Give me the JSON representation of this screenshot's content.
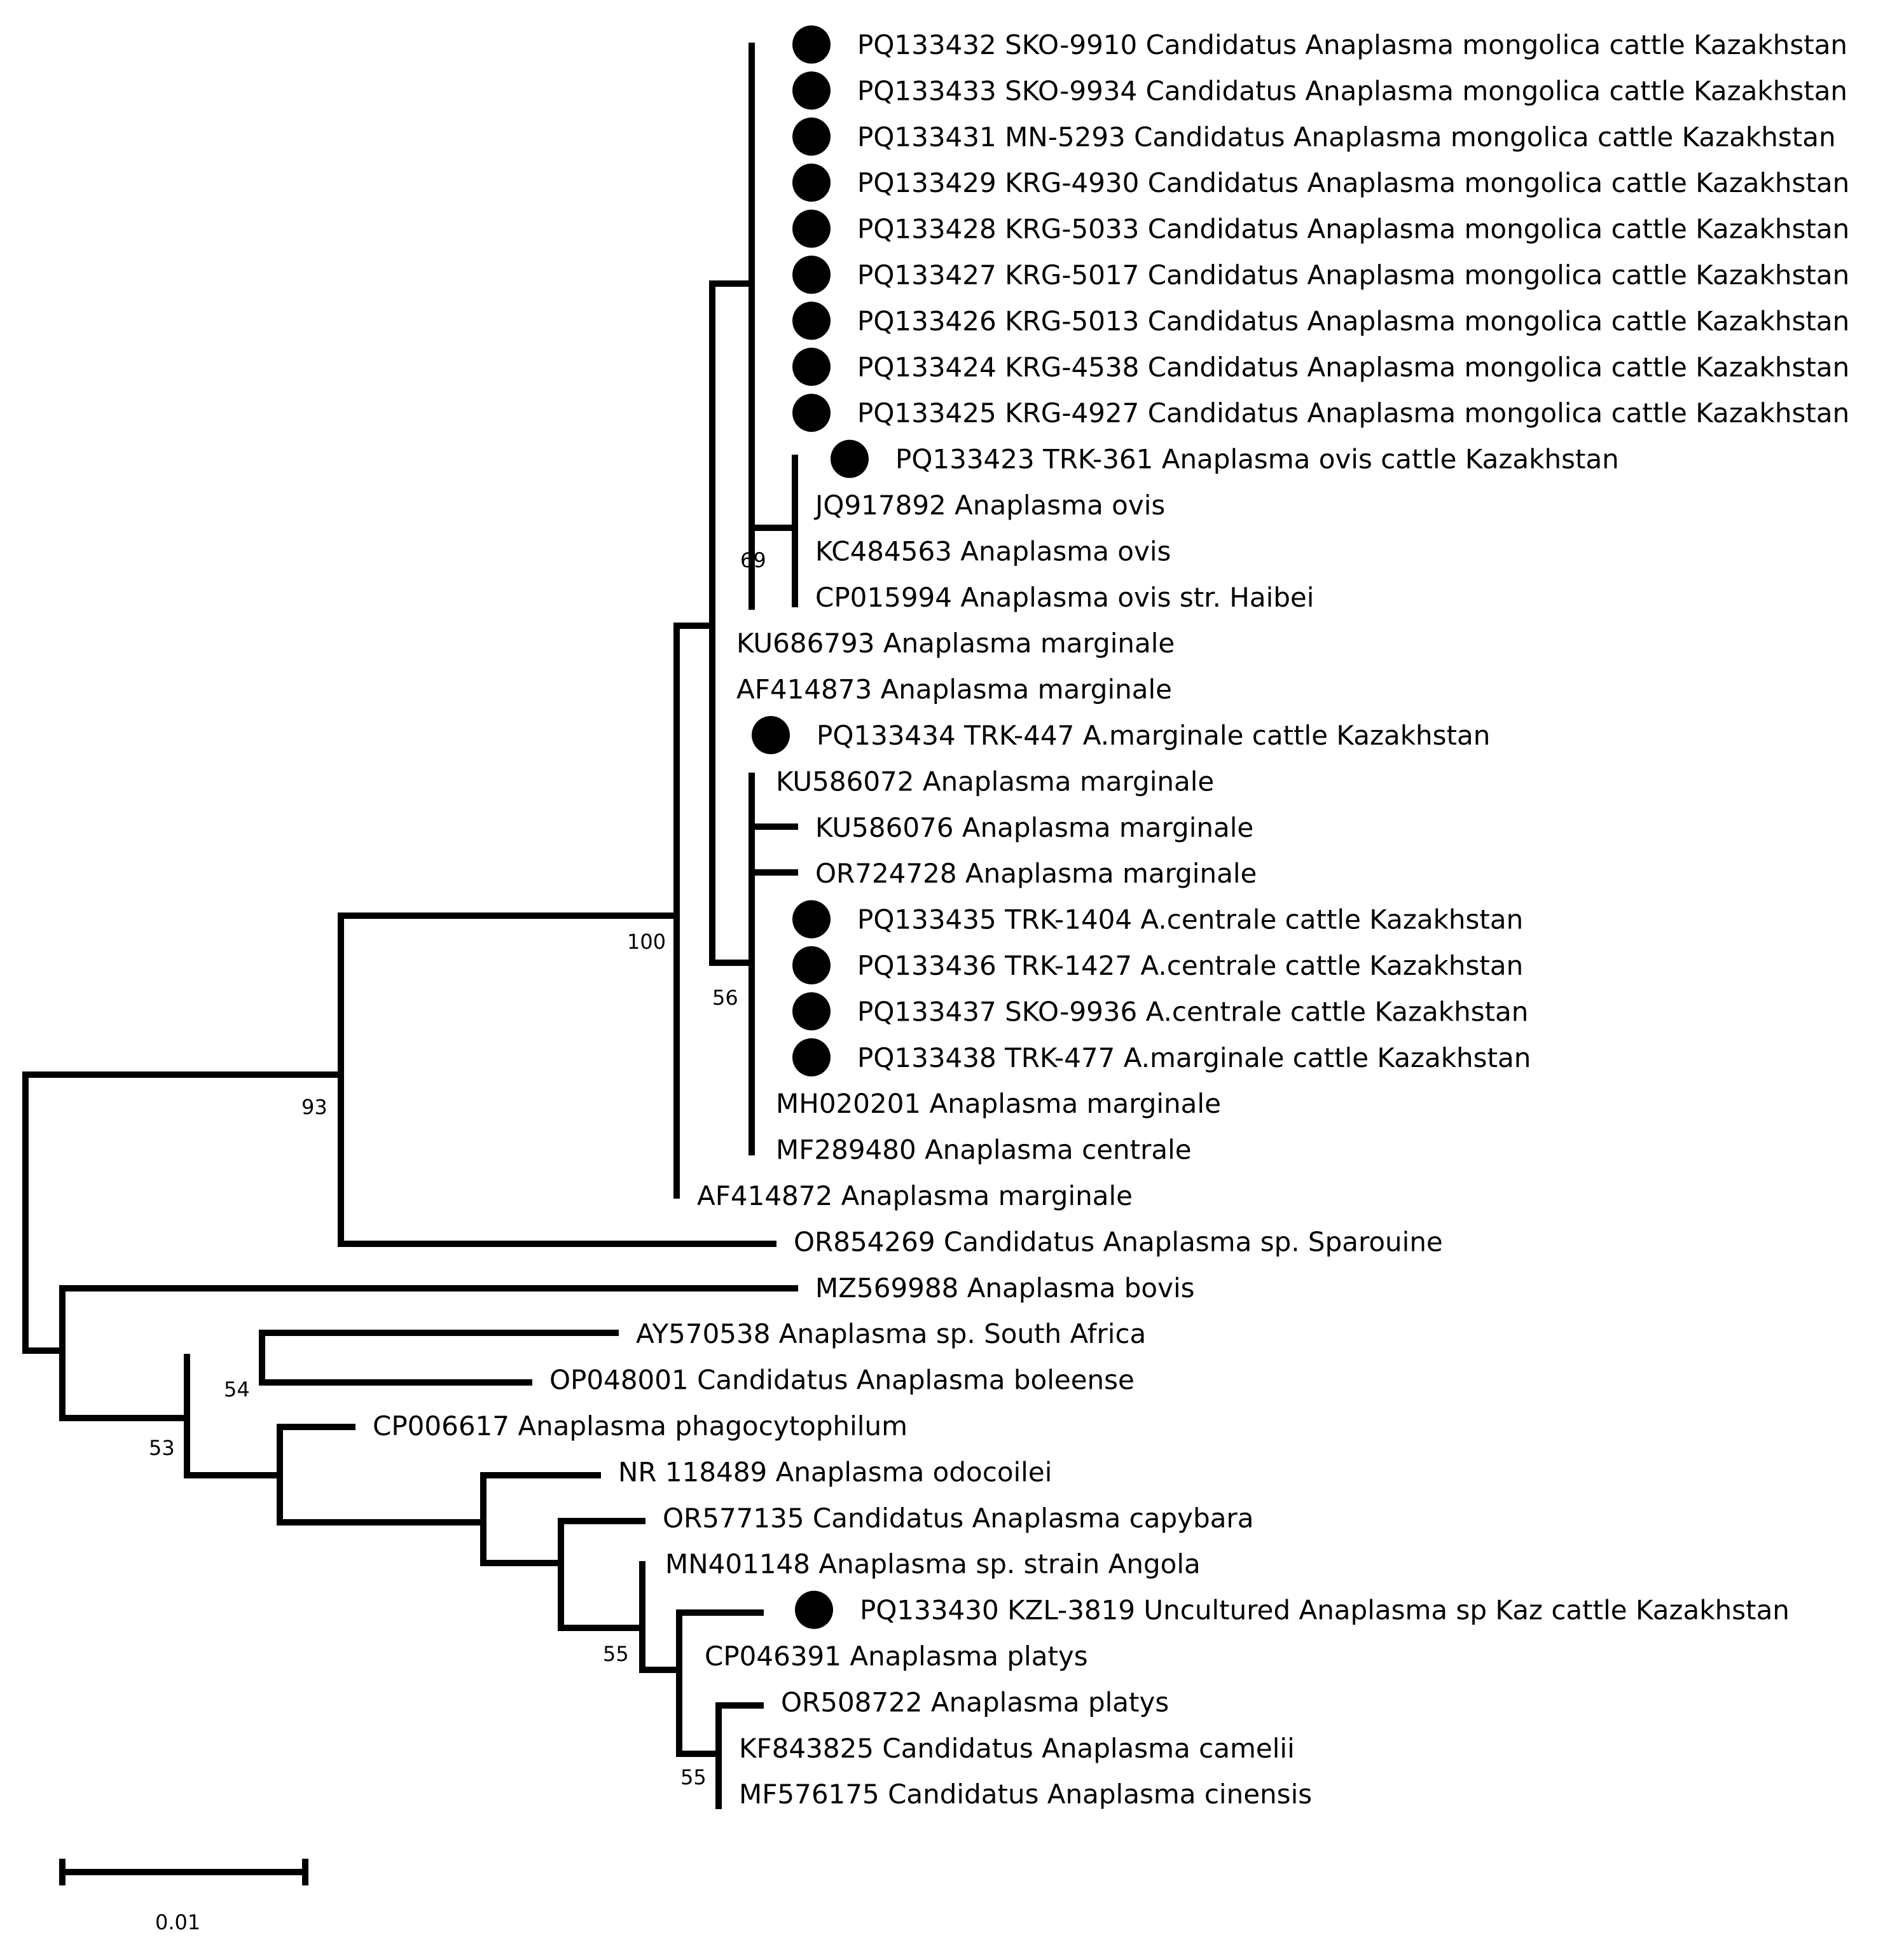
{
  "tree": {
    "leaves": [
      {
        "id": "L1",
        "label": "PQ133432 SKO-9910 Candidatus Anaplasma mongolica cattle Kazakhstan",
        "marker": true
      },
      {
        "id": "L2",
        "label": "PQ133433 SKO-9934 Candidatus Anaplasma mongolica cattle Kazakhstan",
        "marker": true
      },
      {
        "id": "L3",
        "label": "PQ133431 MN-5293 Candidatus Anaplasma mongolica cattle Kazakhstan",
        "marker": true
      },
      {
        "id": "L4",
        "label": "PQ133429 KRG-4930 Candidatus Anaplasma mongolica cattle Kazakhstan",
        "marker": true
      },
      {
        "id": "L5",
        "label": "PQ133428 KRG-5033 Candidatus Anaplasma mongolica cattle Kazakhstan",
        "marker": true
      },
      {
        "id": "L6",
        "label": "PQ133427 KRG-5017 Candidatus Anaplasma mongolica cattle Kazakhstan",
        "marker": true
      },
      {
        "id": "L7",
        "label": "PQ133426 KRG-5013 Candidatus Anaplasma mongolica cattle Kazakhstan",
        "marker": true
      },
      {
        "id": "L8",
        "label": "PQ133424 KRG-4538 Candidatus Anaplasma mongolica cattle Kazakhstan",
        "marker": true
      },
      {
        "id": "L9",
        "label": "PQ133425 KRG-4927 Candidatus Anaplasma mongolica cattle Kazakhstan",
        "marker": true
      },
      {
        "id": "L10",
        "label": "PQ133423 TRK-361 Anaplasma ovis cattle Kazakhstan",
        "marker": true
      },
      {
        "id": "L11",
        "label": "JQ917892 Anaplasma ovis",
        "marker": false
      },
      {
        "id": "L12",
        "label": "KC484563 Anaplasma ovis",
        "marker": false
      },
      {
        "id": "L13",
        "label": "CP015994 Anaplasma ovis str. Haibei",
        "marker": false
      },
      {
        "id": "L14",
        "label": "KU686793 Anaplasma marginale",
        "marker": false
      },
      {
        "id": "L15",
        "label": "AF414873 Anaplasma marginale",
        "marker": false
      },
      {
        "id": "L16",
        "label": "PQ133434 TRK-447 A.marginale cattle Kazakhstan",
        "marker": true
      },
      {
        "id": "L17",
        "label": "KU586072 Anaplasma marginale",
        "marker": false
      },
      {
        "id": "L18",
        "label": "KU586076 Anaplasma marginale",
        "marker": false
      },
      {
        "id": "L19",
        "label": "OR724728 Anaplasma marginale",
        "marker": false
      },
      {
        "id": "L20",
        "label": "PQ133435 TRK-1404 A.centrale cattle Kazakhstan",
        "marker": true
      },
      {
        "id": "L21",
        "label": "PQ133436 TRK-1427 A.centrale cattle Kazakhstan",
        "marker": true
      },
      {
        "id": "L22",
        "label": "PQ133437 SKO-9936 A.centrale cattle Kazakhstan",
        "marker": true
      },
      {
        "id": "L23",
        "label": "PQ133438 TRK-477 A.marginale cattle Kazakhstan",
        "marker": true
      },
      {
        "id": "L24",
        "label": "MH020201 Anaplasma marginale",
        "marker": false
      },
      {
        "id": "L25",
        "label": "MF289480 Anaplasma centrale",
        "marker": false
      },
      {
        "id": "L26",
        "label": "AF414872 Anaplasma marginale",
        "marker": false
      },
      {
        "id": "L27",
        "label": "OR854269 Candidatus Anaplasma sp. Sparouine",
        "marker": false
      },
      {
        "id": "L28",
        "label": "MZ569988 Anaplasma bovis",
        "marker": false
      },
      {
        "id": "L29",
        "label": "AY570538 Anaplasma sp. South Africa",
        "marker": false
      },
      {
        "id": "L30",
        "label": "OP048001 Candidatus Anaplasma boleense",
        "marker": false
      },
      {
        "id": "L31",
        "label": "CP006617 Anaplasma phagocytophilum",
        "marker": false
      },
      {
        "id": "L32",
        "label": "NR 118489 Anaplasma odocoilei",
        "marker": false
      },
      {
        "id": "L33",
        "label": "OR577135 Candidatus Anaplasma capybara",
        "marker": false
      },
      {
        "id": "L34",
        "label": "MN401148 Anaplasma sp. strain Angola",
        "marker": false
      },
      {
        "id": "L35",
        "label": "PQ133430 KZL-3819 Uncultured Anaplasma sp Kaz cattle Kazakhstan",
        "marker": true
      },
      {
        "id": "L36",
        "label": "CP046391 Anaplasma platys",
        "marker": false
      },
      {
        "id": "L37",
        "label": "OR508722 Anaplasma platys",
        "marker": false
      },
      {
        "id": "L38",
        "label": "KF843825 Candidatus Anaplasma camelii",
        "marker": false
      },
      {
        "id": "L39",
        "label": "MF576175 Candidatus Anaplasma cinensis",
        "marker": false
      }
    ],
    "bootstrap": [
      {
        "id": "B69",
        "value": "69"
      },
      {
        "id": "B100",
        "value": "100"
      },
      {
        "id": "B56",
        "value": "56"
      },
      {
        "id": "B93",
        "value": "93"
      },
      {
        "id": "B54",
        "value": "54"
      },
      {
        "id": "B53",
        "value": "53"
      },
      {
        "id": "B55a",
        "value": "55"
      },
      {
        "id": "B55b",
        "value": "55"
      }
    ],
    "scale_bar": {
      "label": "0.01",
      "units": 0.01
    }
  }
}
